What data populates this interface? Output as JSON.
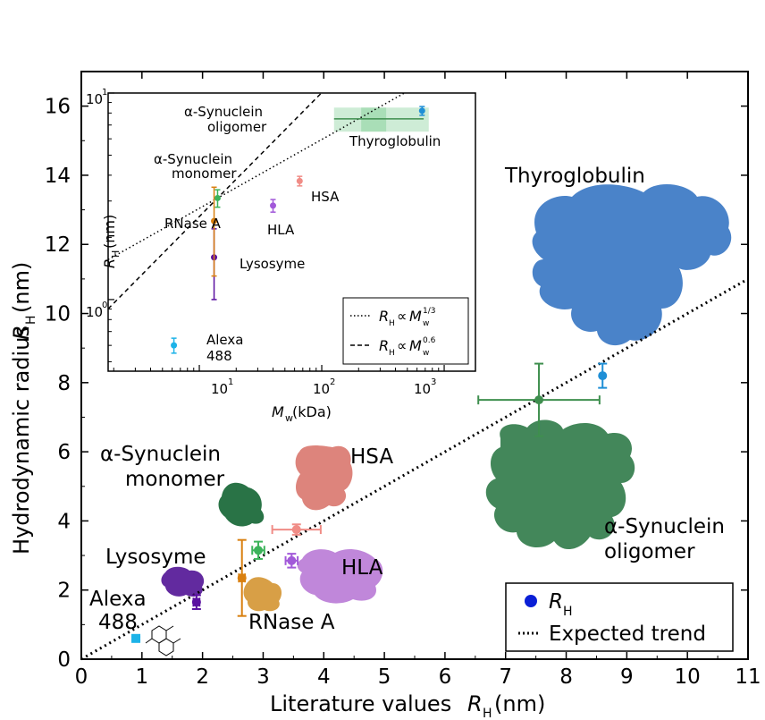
{
  "chart_data": [
    {
      "type": "scatter",
      "xlabel": "Literature values R_H (nm)",
      "ylabel": "Hydrodynamic radius R_H (nm)",
      "xlim": [
        0,
        11
      ],
      "ylim": [
        0,
        17
      ],
      "x_ticks": [
        "0",
        "1",
        "2",
        "3",
        "4",
        "5",
        "6",
        "7",
        "8",
        "9",
        "10",
        "11"
      ],
      "y_ticks": [
        "0",
        "2",
        "4",
        "6",
        "8",
        "10",
        "12",
        "14",
        "16"
      ],
      "legend": {
        "position": "bottom-right",
        "entries": [
          "R_H",
          "Expected trend"
        ]
      },
      "series": [
        {
          "name": "R_H",
          "points": [
            {
              "protein": "Alexa 488",
              "x": 0.9,
              "y": 0.6,
              "xerr": 0.0,
              "yerr": 0.05,
              "color": "#1db3e8"
            },
            {
              "protein": "Lysosyme",
              "x": 1.9,
              "y": 1.65,
              "xerr": 0.05,
              "yerr": 0.2,
              "color": "#5a10a0"
            },
            {
              "protein": "RNase A",
              "x": 2.65,
              "y": 2.35,
              "xerr": 0.05,
              "yerr": 1.1,
              "color": "#d98010"
            },
            {
              "protein": "α-Synuclein monomer",
              "x": 2.92,
              "y": 3.15,
              "xerr": 0.1,
              "yerr": 0.25,
              "color": "#3cb35a"
            },
            {
              "protein": "HLA",
              "x": 3.47,
              "y": 2.85,
              "xerr": 0.1,
              "yerr": 0.2,
              "color": "#a259d9"
            },
            {
              "protein": "HSA",
              "x": 3.55,
              "y": 3.75,
              "xerr": 0.4,
              "yerr": 0.15,
              "color": "#f08c86"
            },
            {
              "protein": "α-Synuclein oligomer",
              "x": 7.55,
              "y": 7.5,
              "xerr": 1.0,
              "yerr": 1.05,
              "color": "#3f8f4f"
            },
            {
              "protein": "Thyroglobulin",
              "x": 8.6,
              "y": 8.2,
              "xerr": 0.0,
              "yerr": 0.35,
              "color": "#1f8fd6"
            }
          ]
        },
        {
          "name": "Expected trend",
          "style": "dotted",
          "x": [
            0,
            11
          ],
          "y": [
            0,
            11
          ]
        }
      ],
      "annotations": [
        {
          "text": "Thyroglobulin"
        },
        {
          "text": "α-Synuclein\noligomer"
        },
        {
          "text": "α-Synuclein\nmonomer"
        },
        {
          "text": "HSA"
        },
        {
          "text": "HLA"
        },
        {
          "text": "Lysosyme"
        },
        {
          "text": "RNase A"
        },
        {
          "text": "Alexa\n488"
        }
      ]
    },
    {
      "type": "scatter",
      "inset": true,
      "scale": "log-log",
      "xlabel": "M_w (kDa)",
      "ylabel": "R_H (nm)",
      "xlim": [
        1.8,
        1800
      ],
      "ylim": [
        0.45,
        10
      ],
      "x_ticks": [
        "10^1",
        "10^2",
        "10^3"
      ],
      "y_ticks": [
        "10^0",
        "10^1"
      ],
      "legend": {
        "position": "bottom-right",
        "entries": [
          "R_H ∝ M_w^1/3",
          "R_H ∝ M_w^0.6"
        ]
      },
      "series": [
        {
          "name": "R_H",
          "points": [
            {
              "protein": "Alexa 488",
              "x": 6.2,
              "y": 0.6,
              "yerr": 0.05,
              "color": "#1db3e8"
            },
            {
              "protein": "Lysosyme",
              "x": 13.2,
              "y": 1.6,
              "yerr": 0.6,
              "color": "#5a10a0"
            },
            {
              "protein": "RNase A",
              "x": 13.2,
              "y": 2.4,
              "yerr": 1.1,
              "color": "#d98010"
            },
            {
              "protein": "α-Synuclein monomer",
              "x": 14.1,
              "y": 3.1,
              "yerr": 0.3,
              "color": "#3cb35a"
            },
            {
              "protein": "HLA",
              "x": 40,
              "y": 2.85,
              "yerr": 0.2,
              "color": "#a259d9"
            },
            {
              "protein": "HSA",
              "x": 66,
              "y": 3.75,
              "yerr": 0.2,
              "color": "#f08c86"
            },
            {
              "protein": "α-Synuclein oligomer",
              "x": [
                210,
                680
              ],
              "y": 7.5,
              "yerr": 1.0,
              "color": "#3f8f4f"
            },
            {
              "protein": "Thyroglobulin",
              "x": 660,
              "y": 8.2,
              "yerr": 0.4,
              "color": "#1f8fd6"
            }
          ]
        },
        {
          "name": "R_H ∝ M_w^1/3",
          "style": "dotted"
        },
        {
          "name": "R_H ∝ M_w^0.6",
          "style": "dashed"
        }
      ],
      "annotations": [
        {
          "text": "α-Synuclein\noligomer"
        },
        {
          "text": "Thyroglobulin"
        },
        {
          "text": "α-Synuclein\nmonomer"
        },
        {
          "text": "HSA"
        },
        {
          "text": "RNase A"
        },
        {
          "text": "HLA"
        },
        {
          "text": "Lysosyme"
        },
        {
          "text": "Alexa\n488"
        }
      ]
    }
  ],
  "labels": {
    "main_xlabel_pre": "Literature values ",
    "main_xlabel_var": "R",
    "main_xlabel_sub": "H",
    "main_xlabel_post": " (nm)",
    "main_ylabel_pre": "Hydrodynamic radius ",
    "main_ylabel_var": "R",
    "main_ylabel_sub": "H",
    "main_ylabel_post": " (nm)",
    "inset_xlabel_var": "M",
    "inset_xlabel_sub": "w",
    "inset_xlabel_post": " (kDa)",
    "inset_ylabel_var": "R",
    "inset_ylabel_sub": "H",
    "inset_ylabel_post": " (nm)",
    "legend_rh_var": "R",
    "legend_rh_sub": "H",
    "legend_trend": "Expected trend",
    "inset_leg1_exp": "1/3",
    "inset_leg2_exp": "0.6",
    "prop": "∝",
    "ten": "10",
    "exp0": "0",
    "exp1": "1",
    "exp2": "2",
    "exp3": "3",
    "ann_thyroglobulin": "Thyroglobulin",
    "ann_asyn": "α-Synuclein",
    "ann_oligomer": "oligomer",
    "ann_monomer": "monomer",
    "ann_hsa": "HSA",
    "ann_hla": "HLA",
    "ann_lysosyme": "Lysosyme",
    "ann_rnase": "RNase A",
    "ann_alexa": "Alexa",
    "ann_488": "488"
  },
  "colors": {
    "thyroglobulin": "#1f8fd6",
    "thyroglobulin_structure": "#3b78c4",
    "oligomer": "#3f8f4f",
    "oligomer_structure": "#2f7a48",
    "monomer": "#3cb35a",
    "monomer_structure": "#1d6b3c",
    "hsa": "#f08c86",
    "hsa_structure": "#d9776e",
    "hla": "#a259d9",
    "hla_structure": "#b97ad6",
    "lysosyme": "#5a10a0",
    "lysosyme_structure": "#5a1f9a",
    "rnase": "#d98010",
    "rnase_structure": "#d69a3c",
    "alexa": "#1db3e8"
  },
  "icons": [
    "thyroglobulin-structure-icon",
    "oligomer-structure-icon",
    "monomer-structure-icon",
    "hsa-structure-icon",
    "hla-structure-icon",
    "lysosyme-structure-icon",
    "rnase-structure-icon",
    "alexa-molecule-icon"
  ]
}
